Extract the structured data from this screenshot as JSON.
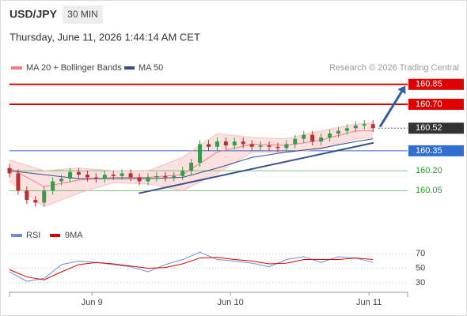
{
  "header": {
    "symbol": "USD/JPY",
    "interval": "30 MIN",
    "datetime": "Thursday, June 11, 2026 1:44:14 AM CET",
    "credit": "Research © 2026 Trading Central"
  },
  "chart_data": [
    {
      "type": "candlestick",
      "up_color": "#3a9a4a",
      "down_color": "#b83030",
      "x": [
        0,
        1.5,
        3,
        4.5,
        6,
        7.5,
        9,
        10.5,
        12,
        13.5,
        15,
        16.5,
        18,
        19.5,
        21,
        22.5,
        24,
        25.5,
        27,
        28.5,
        30,
        31.5,
        33,
        34.5,
        36,
        37.5,
        39,
        40.5,
        42,
        43.5,
        45,
        46.5,
        48,
        49.5,
        51,
        52.5,
        54,
        55.5,
        57,
        58.5,
        60,
        61.5,
        63
      ],
      "open": [
        160.22,
        160.18,
        160.05,
        159.98,
        159.96,
        160.05,
        160.12,
        160.14,
        160.19,
        160.17,
        160.15,
        160.14,
        160.17,
        160.16,
        160.18,
        160.15,
        160.12,
        160.15,
        160.16,
        160.15,
        160.16,
        160.2,
        160.26,
        160.4,
        160.38,
        160.42,
        160.39,
        160.42,
        160.4,
        160.38,
        160.39,
        160.38,
        160.37,
        160.4,
        160.44,
        160.47,
        160.42,
        160.45,
        160.48,
        160.5,
        160.52,
        160.54,
        160.55
      ],
      "high": [
        160.25,
        160.21,
        160.08,
        160.01,
        160.08,
        160.15,
        160.17,
        160.22,
        160.22,
        160.2,
        160.18,
        160.2,
        160.2,
        160.21,
        160.21,
        160.18,
        160.18,
        160.19,
        160.19,
        160.19,
        160.23,
        160.29,
        160.43,
        160.43,
        160.45,
        160.45,
        160.45,
        160.45,
        160.43,
        160.42,
        160.42,
        160.41,
        160.43,
        160.47,
        160.5,
        160.5,
        160.48,
        160.51,
        160.53,
        160.55,
        160.57,
        160.58,
        160.58
      ],
      "low": [
        160.15,
        160.02,
        159.95,
        159.93,
        159.93,
        160.02,
        160.09,
        160.11,
        160.14,
        160.12,
        160.11,
        160.11,
        160.13,
        160.13,
        160.12,
        160.09,
        160.09,
        160.12,
        160.12,
        160.12,
        160.13,
        160.17,
        160.23,
        160.35,
        160.35,
        160.36,
        160.36,
        160.37,
        160.35,
        160.35,
        160.35,
        160.34,
        160.34,
        160.37,
        160.41,
        160.39,
        160.39,
        160.42,
        160.45,
        160.47,
        160.49,
        160.51,
        160.49
      ],
      "close": [
        160.18,
        160.05,
        159.98,
        159.96,
        160.05,
        160.12,
        160.14,
        160.19,
        160.17,
        160.15,
        160.14,
        160.17,
        160.16,
        160.18,
        160.15,
        160.12,
        160.15,
        160.16,
        160.15,
        160.16,
        160.2,
        160.26,
        160.4,
        160.38,
        160.42,
        160.39,
        160.42,
        160.4,
        160.38,
        160.39,
        160.38,
        160.37,
        160.4,
        160.44,
        160.47,
        160.42,
        160.45,
        160.48,
        160.5,
        160.52,
        160.54,
        160.55,
        160.52
      ],
      "series": [
        {
          "name": "MA 20 + Bollinger Bands",
          "color": "#f08080",
          "band_color": "#fde0e0",
          "x": [
            0,
            6,
            12,
            18,
            24,
            30,
            36,
            42,
            48,
            54,
            60,
            63
          ],
          "values": [
            160.22,
            160.08,
            160.13,
            160.15,
            160.15,
            160.17,
            160.34,
            160.4,
            160.39,
            160.43,
            160.5,
            160.5
          ],
          "upper": [
            160.28,
            160.2,
            160.22,
            160.2,
            160.2,
            160.3,
            160.48,
            160.45,
            160.44,
            160.5,
            160.55,
            160.56
          ],
          "lower": [
            160.12,
            159.93,
            160.03,
            160.11,
            160.1,
            160.05,
            160.18,
            160.34,
            160.34,
            160.36,
            160.44,
            160.45
          ]
        },
        {
          "name": "MA 50",
          "color": "#2f4f8f",
          "x": [
            0,
            6,
            12,
            18,
            24,
            30,
            36,
            42,
            48,
            54,
            60,
            63
          ],
          "values": [
            160.2,
            160.17,
            160.14,
            160.14,
            160.14,
            160.15,
            160.22,
            160.3,
            160.34,
            160.37,
            160.42,
            160.44
          ]
        }
      ],
      "levels": [
        {
          "value": 160.85,
          "color": "#e00000",
          "kind": "box"
        },
        {
          "value": {
            "value": 160.7,
            "label": "160.70"
          },
          "color": "#e00000",
          "kind": "box"
        },
        {
          "value": 160.52,
          "color": "#333333",
          "kind": "current"
        },
        {
          "value": 160.35,
          "color": "#2f6fd0",
          "kind": "box"
        },
        {
          "value": {
            "value": 160.2,
            "label": "160.20"
          },
          "color": "#2e9e2e",
          "kind": "text"
        },
        {
          "value": 160.05,
          "color": "#2e9e2e",
          "kind": "text"
        }
      ],
      "trendline": {
        "color": "#3b4f8c",
        "x": [
          22.4,
          63.1
        ],
        "y": [
          160.03,
          160.41
        ]
      },
      "arrow": {
        "color": "#2e5fa8",
        "x": [
          64.2,
          68.6
        ],
        "y": [
          160.53,
          160.84
        ]
      },
      "xlim": [
        0,
        69
      ],
      "ylim": [
        159.82,
        160.92
      ]
    },
    {
      "type": "line",
      "series": [
        {
          "name": "RSI",
          "color": "#6b8fd6",
          "x": [
            0,
            3,
            6,
            9,
            12,
            15,
            18,
            21,
            24,
            27,
            30,
            33,
            36,
            39,
            42,
            45,
            48,
            51,
            54,
            57,
            60,
            63
          ],
          "values": [
            45,
            32,
            36,
            55,
            60,
            58,
            55,
            52,
            45,
            55,
            62,
            72,
            62,
            60,
            57,
            52,
            62,
            66,
            58,
            66,
            64,
            58
          ]
        },
        {
          "name": "9MA",
          "color": "#e00000",
          "x": [
            0,
            3,
            6,
            9,
            12,
            15,
            18,
            21,
            24,
            27,
            30,
            33,
            36,
            39,
            42,
            45,
            48,
            51,
            54,
            57,
            60,
            63
          ],
          "values": [
            48,
            38,
            34,
            45,
            55,
            58,
            56,
            53,
            50,
            51,
            56,
            64,
            65,
            62,
            60,
            56,
            57,
            62,
            62,
            62,
            64,
            62
          ]
        }
      ],
      "xlim": [
        0,
        69
      ],
      "ylim": [
        19,
        80
      ],
      "yticks": [
        30,
        50,
        70
      ],
      "xticks": [
        {
          "value": 14.3,
          "label": "Jun 9"
        },
        {
          "value": 38.3,
          "label": "Jun 10"
        },
        {
          "value": 62.3,
          "label": "Jun 11"
        }
      ]
    }
  ]
}
